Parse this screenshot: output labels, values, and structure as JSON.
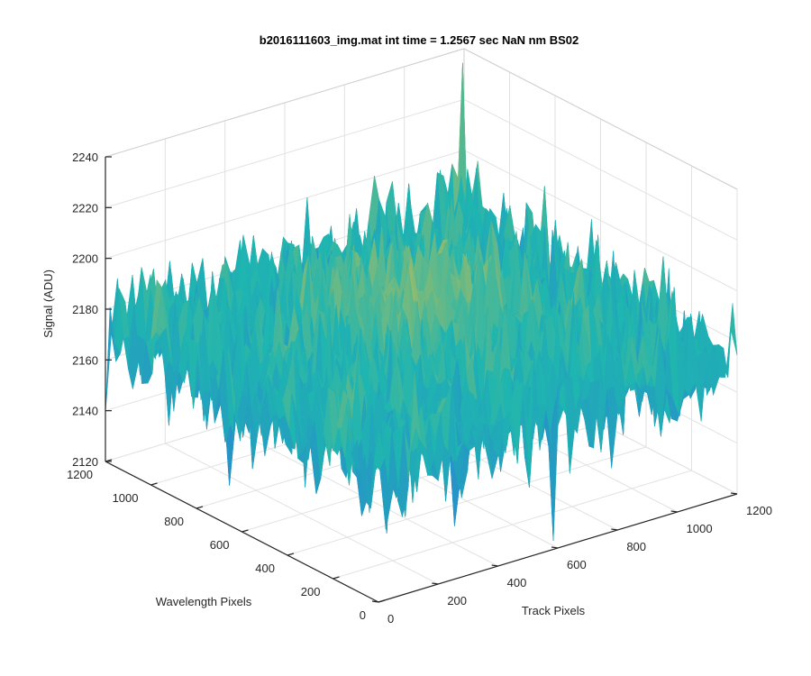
{
  "chart_data": {
    "type": "surface3d",
    "title": "b2016111603_img.mat int time = 1.2567 sec  NaN nm BS02",
    "xlabel": "Track Pixels",
    "ylabel": "Wavelength Pixels",
    "zlabel": "Signal (ADU)",
    "xlim": [
      0,
      1200
    ],
    "ylim": [
      0,
      1200
    ],
    "zlim": [
      2120,
      2240
    ],
    "xticks": [
      0,
      200,
      400,
      600,
      800,
      1000,
      1200
    ],
    "yticks": [
      0,
      200,
      400,
      600,
      800,
      1000,
      1200
    ],
    "zticks": [
      2120,
      2140,
      2160,
      2180,
      2200,
      2220,
      2240
    ],
    "xtick_labels": [
      "0",
      "200",
      "400",
      "600",
      "800",
      "1000",
      "1200"
    ],
    "ytick_labels": [
      "0",
      "200",
      "400",
      "600",
      "800",
      "1000",
      "1200"
    ],
    "ztick_labels": [
      "2120",
      "2140",
      "2160",
      "2180",
      "2200",
      "2220",
      "2240"
    ],
    "grid": true,
    "colormap": "parula",
    "surface_summary": {
      "mean": 2178,
      "noise_std": 12,
      "center_bump": 18,
      "min_spike": 2122,
      "max_spike": 2236
    },
    "colors": {
      "low": "#2b7bd8",
      "mid": "#1fb5b0",
      "high": "#d4bf48",
      "axis": "#262626",
      "grid": "#e2e2e2"
    }
  }
}
